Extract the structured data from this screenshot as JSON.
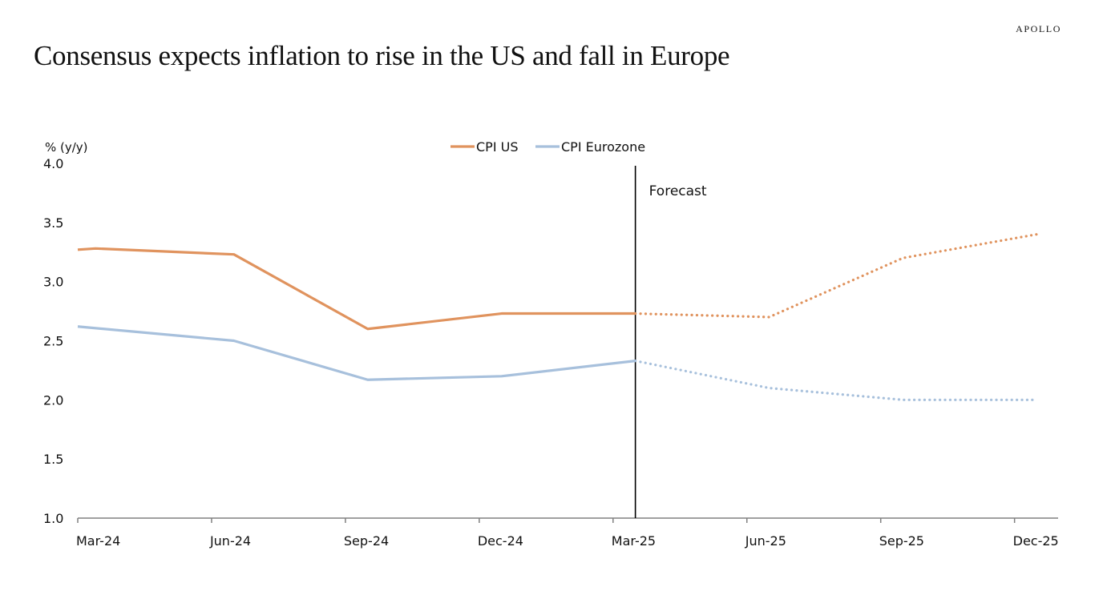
{
  "header": {
    "brand": "APOLLO",
    "title": "Consensus expects inflation to rise in the US and fall in Europe"
  },
  "chart_data": {
    "type": "line",
    "title": "Consensus expects inflation to rise in the US and fall in Europe",
    "ylabel": "% (y/y)",
    "xlabel": "",
    "ylim": [
      1.0,
      4.0
    ],
    "yticks": [
      "1.0",
      "1.5",
      "2.0",
      "2.5",
      "3.0",
      "3.5",
      "4.0"
    ],
    "ytick_values": [
      1.0,
      1.5,
      2.0,
      2.5,
      3.0,
      3.5,
      4.0
    ],
    "xticks": [
      "Mar-24",
      "Jun-24",
      "Sep-24",
      "Dec-24",
      "Mar-25",
      "Jun-25",
      "Sep-25",
      "Dec-25"
    ],
    "x_unit": "months since Mar-24",
    "xlim": [
      0,
      21.5
    ],
    "legend": {
      "position": "top-center",
      "entries": [
        "CPI US",
        "CPI Eurozone"
      ]
    },
    "grid": false,
    "forecast_marker": {
      "x": 12.5,
      "label": "Forecast"
    },
    "series": [
      {
        "name": "CPI US",
        "color": "#E0935E",
        "x": [
          0,
          0.4,
          3.5,
          6.5,
          9.5,
          12.5,
          15.5,
          18.5,
          21.5
        ],
        "values": [
          3.27,
          3.28,
          3.23,
          2.6,
          2.73,
          2.73,
          2.7,
          3.2,
          3.4
        ],
        "forecast_from_index": 5
      },
      {
        "name": "CPI Eurozone",
        "color": "#A7C0DC",
        "x": [
          0,
          3.5,
          6.5,
          9.5,
          12.5,
          15.5,
          18.5,
          21.5
        ],
        "values": [
          2.62,
          2.5,
          2.17,
          2.2,
          2.33,
          2.1,
          2.0,
          2.0
        ],
        "forecast_from_index": 4
      }
    ]
  }
}
